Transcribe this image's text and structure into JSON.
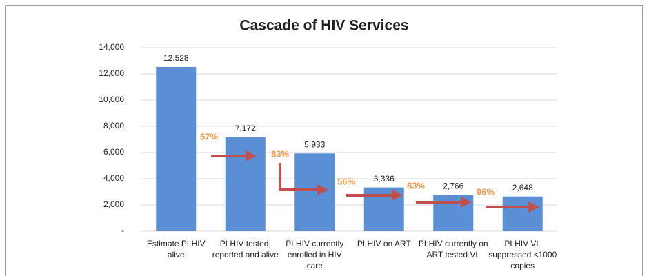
{
  "chart_data": {
    "type": "bar",
    "title": "Cascade of HIV Services",
    "categories": [
      "Estimate PLHIV alive",
      "PLHIV tested, reported and alive",
      "PLHIV currently enrolled in HIV care",
      "PLHIV on ART",
      "PLHIV currently on ART tested VL",
      "PLHIV VL suppressed <1000 copies"
    ],
    "values": [
      12528,
      7172,
      5933,
      3336,
      2766,
      2648
    ],
    "value_labels": [
      "12,528",
      "7,172",
      "5,933",
      "3,336",
      "2,766",
      "2,648"
    ],
    "color": "#5b8fd5",
    "ylim": [
      0,
      14000
    ],
    "yticks": [
      {
        "value": 0,
        "label": "-"
      },
      {
        "value": 2000,
        "label": "2,000"
      },
      {
        "value": 4000,
        "label": "4,000"
      },
      {
        "value": 6000,
        "label": "6,000"
      },
      {
        "value": 8000,
        "label": "8,000"
      },
      {
        "value": 10000,
        "label": "10,000"
      },
      {
        "value": 12000,
        "label": "12,000"
      },
      {
        "value": 14000,
        "label": "14,000"
      }
    ],
    "grid": true,
    "annotations": [
      "57%",
      "83%",
      "56%",
      "83%",
      "96%"
    ]
  }
}
